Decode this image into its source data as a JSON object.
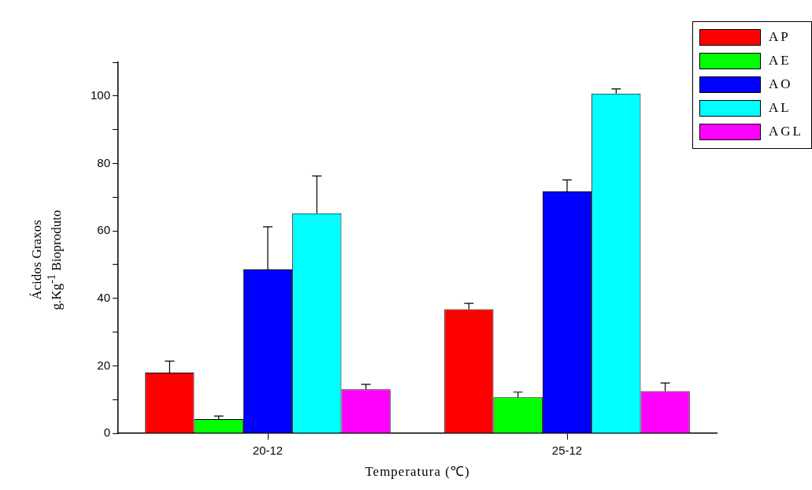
{
  "chart_data": {
    "type": "bar",
    "xlabel": "Temperatura (℃)",
    "ylabel": "Ácidos Graxos\ng.Kg$^{-1}$ Bioproduto",
    "categories": [
      "20-12",
      "25-12"
    ],
    "series": [
      {
        "name": "AP",
        "color": "#ff0000",
        "values": [
          18.0,
          36.8
        ],
        "errors": [
          [
            18.0,
            21.4
          ],
          [
            36.8,
            38.5
          ]
        ]
      },
      {
        "name": "AE",
        "color": "#00ff00",
        "values": [
          4.2,
          10.7
        ],
        "errors": [
          [
            4.2,
            5.1
          ],
          [
            10.7,
            12.2
          ]
        ]
      },
      {
        "name": "AO",
        "color": "#0000ff",
        "values": [
          48.6,
          71.7
        ],
        "errors": [
          [
            48.6,
            61.2
          ],
          [
            71.7,
            75.1
          ]
        ]
      },
      {
        "name": "AL",
        "color": "#00ffff",
        "values": [
          65.2,
          100.7
        ],
        "errors": [
          [
            65.2,
            76.3
          ],
          [
            100.7,
            102.1
          ]
        ]
      },
      {
        "name": "AGL",
        "color": "#ff00ff",
        "values": [
          13.0,
          12.5
        ],
        "errors": [
          [
            13.0,
            14.5
          ],
          [
            12.5,
            14.9
          ]
        ]
      }
    ],
    "ylim": [
      0,
      110
    ],
    "yticks": [
      0,
      {
        "value": 10,
        "label": null
      },
      20,
      {
        "value": 30,
        "label": null
      },
      40,
      {
        "value": 50,
        "label": null
      },
      60,
      {
        "value": 70,
        "label": null
      },
      80,
      {
        "value": 90,
        "label": null
      },
      100,
      {
        "value": 110,
        "label": null
      }
    ],
    "legend": "top right"
  }
}
